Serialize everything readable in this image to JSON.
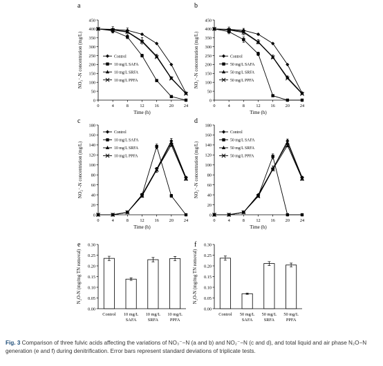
{
  "caption": {
    "label": "Fig. 3",
    "text": "Comparison of three fulvic acids affecting the variations of NO₃⁻−N (a and b) and NO₂⁻−N (c and d), and total liquid and air phase N₂O−N generation (e and f) during denitrification. Error bars represent standard deviations of triplicate tests."
  },
  "colors": {
    "axis": "#000000",
    "line": "#000000",
    "bar_fill": "#ffffff"
  },
  "chart_data": [
    {
      "panel": "a",
      "type": "line",
      "xlabel": "Time (h)",
      "ylabel": "NO₃⁻-N concentration (mg/L)",
      "xlim": [
        0,
        24
      ],
      "ylim": [
        0,
        450
      ],
      "xticks": [
        "0",
        "4",
        "8",
        "12",
        "16",
        "20",
        "24"
      ],
      "yticks": [
        "0",
        "50",
        "100",
        "150",
        "200",
        "250",
        "300",
        "350",
        "400",
        "450"
      ],
      "legend_position": "left-middle",
      "x": [
        0,
        4,
        8,
        12,
        16,
        20,
        24
      ],
      "series": [
        {
          "name": "Control",
          "marker": "diamond",
          "values": [
            400,
            398,
            392,
            370,
            318,
            200,
            40
          ],
          "err": [
            0,
            0,
            0,
            0,
            0,
            0,
            0
          ]
        },
        {
          "name": "10 mg/L SAFA",
          "marker": "square",
          "values": [
            400,
            390,
            355,
            250,
            110,
            20,
            0
          ],
          "err": [
            0,
            10,
            10,
            8,
            5,
            3,
            0
          ]
        },
        {
          "name": "10 mg/L SRFA",
          "marker": "triangle",
          "values": [
            400,
            395,
            385,
            333,
            247,
            124,
            38
          ],
          "err": [
            0,
            18,
            20,
            18,
            10,
            7,
            4
          ]
        },
        {
          "name": "10 mg/L PPFA",
          "marker": "cross",
          "values": [
            400,
            394,
            382,
            328,
            242,
            121,
            36
          ],
          "err": [
            0,
            0,
            0,
            0,
            0,
            0,
            0
          ]
        }
      ]
    },
    {
      "panel": "b",
      "type": "line",
      "xlabel": "Time (h)",
      "ylabel": "NO₃⁻-N concentration (mg/L)",
      "xlim": [
        0,
        24
      ],
      "ylim": [
        0,
        450
      ],
      "xticks": [
        "0",
        "4",
        "8",
        "12",
        "16",
        "20",
        "24"
      ],
      "yticks": [
        "0",
        "50",
        "100",
        "150",
        "200",
        "250",
        "300",
        "350",
        "400",
        "450"
      ],
      "legend_position": "left-middle",
      "x": [
        0,
        4,
        8,
        12,
        16,
        20,
        24
      ],
      "series": [
        {
          "name": "Control",
          "marker": "diamond",
          "values": [
            400,
            398,
            392,
            370,
            318,
            200,
            40
          ],
          "err": [
            0,
            0,
            0,
            0,
            0,
            0,
            0
          ]
        },
        {
          "name": "50 mg/L SAFA",
          "marker": "square",
          "values": [
            400,
            385,
            340,
            260,
            25,
            0,
            0
          ],
          "err": [
            0,
            12,
            15,
            10,
            4,
            0,
            0
          ]
        },
        {
          "name": "50 mg/L SRFA",
          "marker": "triangle",
          "values": [
            400,
            396,
            385,
            328,
            243,
            128,
            38
          ],
          "err": [
            0,
            15,
            18,
            12,
            10,
            8,
            4
          ]
        },
        {
          "name": "50 mg/L PPFA",
          "marker": "cross",
          "values": [
            400,
            394,
            380,
            325,
            240,
            122,
            35
          ],
          "err": [
            0,
            0,
            0,
            0,
            0,
            0,
            0
          ]
        }
      ]
    },
    {
      "panel": "c",
      "type": "line",
      "xlabel": "Time (h)",
      "ylabel": "NO₂⁻-N concentration (mg/L)",
      "xlim": [
        0,
        24
      ],
      "ylim": [
        0,
        180
      ],
      "xticks": [
        "0",
        "4",
        "8",
        "12",
        "16",
        "20",
        "24"
      ],
      "yticks": [
        "0",
        "20",
        "40",
        "60",
        "80",
        "100",
        "120",
        "140",
        "160",
        "180"
      ],
      "legend_position": "top-left",
      "x": [
        0,
        4,
        8,
        12,
        16,
        20,
        24
      ],
      "series": [
        {
          "name": "Control",
          "marker": "diamond",
          "values": [
            0,
            0,
            5,
            40,
            92,
            148,
            75
          ],
          "err": [
            0,
            0,
            0,
            0,
            0,
            0,
            0
          ]
        },
        {
          "name": "10 mg/L SAFA",
          "marker": "square",
          "values": [
            0,
            0,
            5,
            40,
            137,
            38,
            0
          ],
          "err": [
            0,
            0,
            2,
            3,
            5,
            3,
            0
          ]
        },
        {
          "name": "10 mg/L SRFA",
          "marker": "triangle",
          "values": [
            0,
            0,
            5,
            38,
            90,
            145,
            73
          ],
          "err": [
            0,
            0,
            2,
            3,
            5,
            8,
            4
          ]
        },
        {
          "name": "10 mg/L PPFA",
          "marker": "cross",
          "values": [
            0,
            0,
            5,
            38,
            90,
            140,
            72
          ],
          "err": [
            0,
            0,
            0,
            0,
            0,
            0,
            0
          ]
        }
      ]
    },
    {
      "panel": "d",
      "type": "line",
      "xlabel": "Time (h)",
      "ylabel": "NO₂⁻-N concentration (mg/L)",
      "xlim": [
        0,
        24
      ],
      "ylim": [
        0,
        180
      ],
      "xticks": [
        "0",
        "4",
        "8",
        "12",
        "16",
        "20",
        "24"
      ],
      "yticks": [
        "0",
        "20",
        "40",
        "60",
        "80",
        "100",
        "120",
        "140",
        "160",
        "180"
      ],
      "legend_position": "top-left",
      "x": [
        0,
        4,
        8,
        12,
        16,
        20,
        24
      ],
      "series": [
        {
          "name": "Control",
          "marker": "diamond",
          "values": [
            0,
            0,
            5,
            40,
            92,
            148,
            75
          ],
          "err": [
            0,
            0,
            0,
            0,
            0,
            0,
            0
          ]
        },
        {
          "name": "50 mg/L SAFA",
          "marker": "square",
          "values": [
            0,
            0,
            5,
            38,
            117,
            0,
            0
          ],
          "err": [
            0,
            0,
            2,
            3,
            5,
            0,
            0
          ]
        },
        {
          "name": "50 mg/L SRFA",
          "marker": "triangle",
          "values": [
            0,
            0,
            5,
            38,
            93,
            144,
            73
          ],
          "err": [
            0,
            0,
            2,
            3,
            5,
            8,
            4
          ]
        },
        {
          "name": "50 mg/L PPFA",
          "marker": "cross",
          "values": [
            0,
            0,
            5,
            37,
            91,
            139,
            72
          ],
          "err": [
            0,
            0,
            0,
            0,
            0,
            0,
            0
          ]
        }
      ]
    },
    {
      "panel": "e",
      "type": "bar",
      "ylabel": "N₂O-N (mg/mg TN removal)",
      "ylim": [
        0,
        0.3
      ],
      "yticks": [
        "0.00",
        "0.05",
        "0.10",
        "0.15",
        "0.20",
        "0.25",
        "0.30"
      ],
      "categories": [
        [
          "Control"
        ],
        [
          "10 mg/L",
          "SAFA"
        ],
        [
          "10 mg/L",
          "SRFA"
        ],
        [
          "10 mg/L",
          "PPFA"
        ]
      ],
      "values": [
        0.235,
        0.138,
        0.229,
        0.234
      ],
      "err": [
        0.01,
        0.006,
        0.01,
        0.01
      ]
    },
    {
      "panel": "f",
      "type": "bar",
      "ylabel": "N₂O-N (mg/mg TN removal)",
      "ylim": [
        0,
        0.3
      ],
      "yticks": [
        "0.00",
        "0.05",
        "0.10",
        "0.15",
        "0.20",
        "0.25",
        "0.30"
      ],
      "categories": [
        [
          "Control"
        ],
        [
          "50 mg/L",
          "SAFA"
        ],
        [
          "50 mg/L",
          "SRFA"
        ],
        [
          "50 mg/L",
          "PPFA"
        ]
      ],
      "values": [
        0.236,
        0.07,
        0.211,
        0.204
      ],
      "err": [
        0.01,
        0.003,
        0.009,
        0.009
      ]
    }
  ]
}
